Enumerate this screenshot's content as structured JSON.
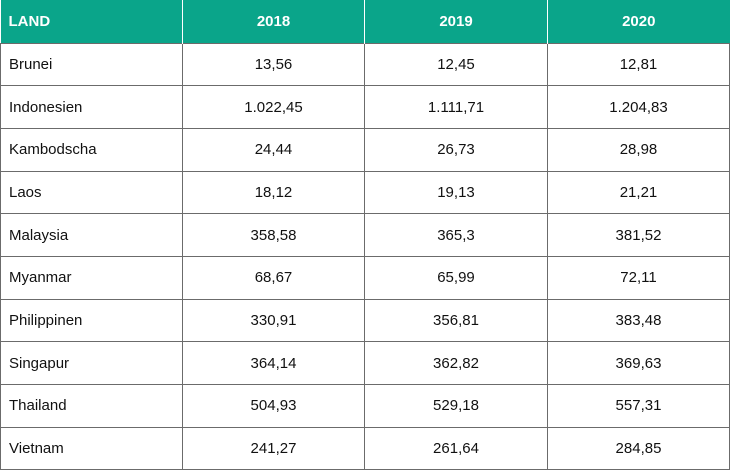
{
  "table": {
    "headers": [
      "LAND",
      "2018",
      "2019",
      "2020"
    ],
    "rows": [
      [
        "Brunei",
        "13,56",
        "12,45",
        "12,81"
      ],
      [
        "Indonesien",
        "1.022,45",
        "1.111,71",
        "1.204,83"
      ],
      [
        "Kambodscha",
        "24,44",
        "26,73",
        "28,98"
      ],
      [
        "Laos",
        "18,12",
        "19,13",
        "21,21"
      ],
      [
        "Malaysia",
        "358,58",
        "365,3",
        "381,52"
      ],
      [
        "Myanmar",
        "68,67",
        "65,99",
        "72,11"
      ],
      [
        "Philippinen",
        "330,91",
        "356,81",
        "383,48"
      ],
      [
        "Singapur",
        "364,14",
        "362,82",
        "369,63"
      ],
      [
        "Thailand",
        "504,93",
        "529,18",
        "557,31"
      ],
      [
        "Vietnam",
        "241,27",
        "261,64",
        "284,85"
      ]
    ]
  },
  "colors": {
    "header_background": "#0aa58a",
    "header_text": "#ffffff",
    "border": "#6b6b6b"
  }
}
